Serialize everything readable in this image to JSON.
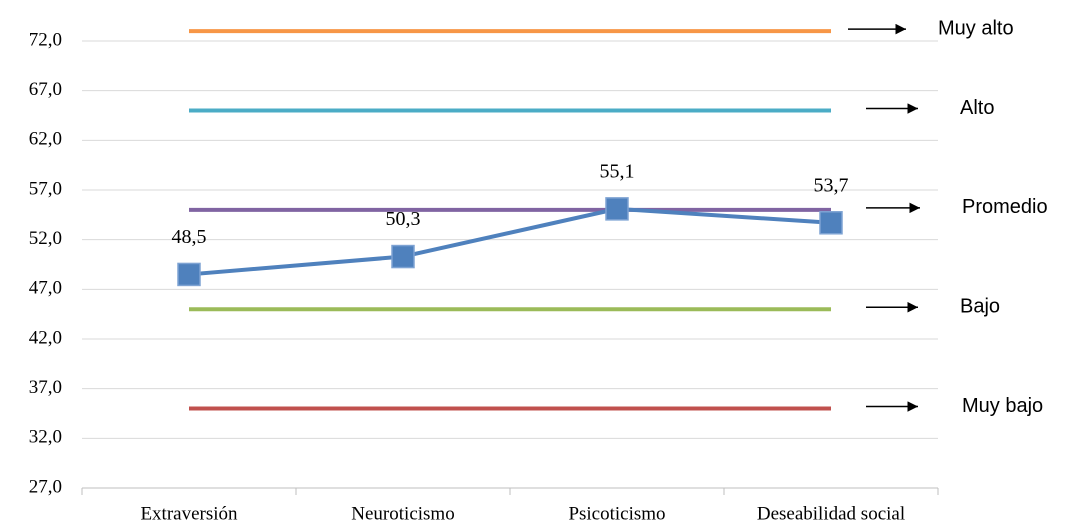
{
  "chart_data": {
    "type": "line",
    "categories": [
      "Extraversión",
      "Neuroticismo",
      "Psicoticismo",
      "Deseabilidad social"
    ],
    "series": [
      {
        "name": "Muy alto",
        "color": "#f79646",
        "values": [
          73,
          73,
          73,
          73
        ]
      },
      {
        "name": "Alto",
        "color": "#4bacc6",
        "values": [
          65,
          65,
          65,
          65
        ]
      },
      {
        "name": "Promedio",
        "color": "#8064a2",
        "values": [
          55,
          55,
          55,
          55
        ]
      },
      {
        "name": "Bajo",
        "color": "#9bbb59",
        "values": [
          45,
          45,
          45,
          45
        ]
      },
      {
        "name": "Muy bajo",
        "color": "#c0504d",
        "values": [
          35,
          35,
          35,
          35
        ]
      },
      {
        "color": "#4f81bd",
        "values": [
          48.5,
          50.3,
          55.1,
          53.7
        ],
        "value_labels": [
          "48,5",
          "50,3",
          "55,1",
          "53,7"
        ],
        "markers": true
      }
    ],
    "ylim": [
      27,
      74
    ],
    "yticks": [
      {
        "value": 27,
        "label": "27,0"
      },
      {
        "value": 32,
        "label": "32,0"
      },
      {
        "value": 37,
        "label": "37,0"
      },
      {
        "value": 42,
        "label": "42,0"
      },
      {
        "value": 47,
        "label": "47,0"
      },
      {
        "value": 52,
        "label": "52,0"
      },
      {
        "value": 57,
        "label": "57,0"
      },
      {
        "value": 62,
        "label": "62,0"
      },
      {
        "value": 67,
        "label": "67,0"
      },
      {
        "value": 72,
        "label": "72,0"
      }
    ],
    "grid": true
  }
}
